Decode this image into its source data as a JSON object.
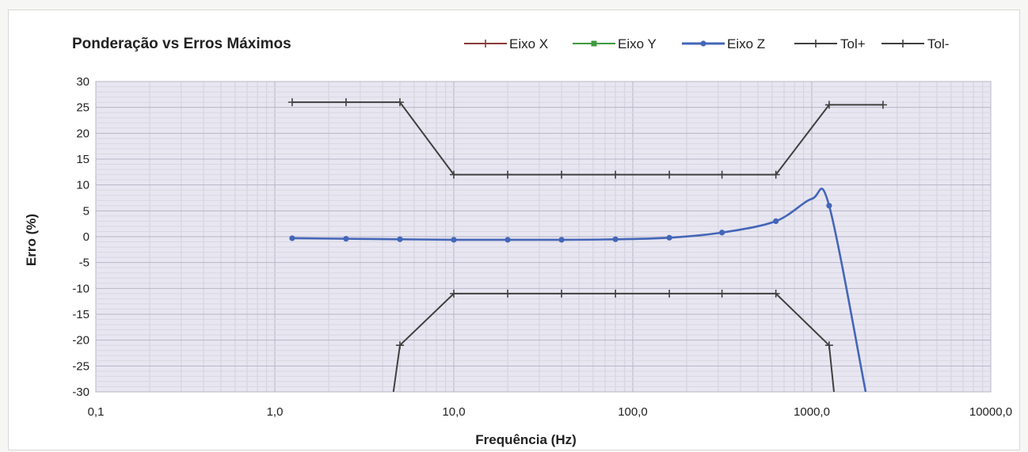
{
  "chart_data": {
    "type": "line",
    "title": "Ponderação vs Erros Máximos",
    "xlabel": "Frequência (Hz)",
    "ylabel": "Erro (%)",
    "x_scale": "log",
    "xlim": [
      0.1,
      10000
    ],
    "ylim": [
      -30,
      30
    ],
    "x_tick_values": [
      0.1,
      1,
      10,
      100,
      1000,
      10000
    ],
    "x_tick_labels": [
      "0,1",
      "1,0",
      "10,0",
      "100,0",
      "1000,0",
      "10000,0"
    ],
    "y_ticks": [
      30,
      25,
      20,
      15,
      10,
      5,
      0,
      -5,
      -10,
      -15,
      -20,
      -25,
      -30
    ],
    "y_tick_labels": [
      "30",
      "25",
      "20",
      "15",
      "10",
      "5",
      "0",
      "-5",
      "-10",
      "-15",
      "-20",
      "-25",
      "-30"
    ],
    "grid": true,
    "legend_position": "top",
    "plot_background": "#e8e6f1",
    "series": [
      {
        "name": "Eixo X",
        "color": "#8b3a3a",
        "marker": "plus",
        "x": [],
        "y": []
      },
      {
        "name": "Eixo Y",
        "color": "#3f9a3f",
        "marker": "square",
        "x": [],
        "y": []
      },
      {
        "name": "Eixo Z",
        "color": "#4466b8",
        "marker": "circle",
        "smooth": true,
        "x": [
          1.25,
          2.5,
          5,
          10,
          20,
          40,
          80,
          160,
          315,
          630,
          1000,
          1250,
          2000
        ],
        "y": [
          -0.3,
          -0.4,
          -0.5,
          -0.6,
          -0.6,
          -0.6,
          -0.5,
          -0.2,
          0.8,
          3.0,
          7.3,
          6.0,
          -30
        ],
        "marker_points": [
          1.25,
          2.5,
          5,
          10,
          20,
          40,
          80,
          160,
          315,
          630,
          1250
        ]
      },
      {
        "name": "Tol+",
        "color": "#404040",
        "marker": "plus",
        "x": [
          1.25,
          2.5,
          5,
          10,
          20,
          40,
          80,
          160,
          315,
          630,
          1250,
          2500
        ],
        "y": [
          26,
          26,
          26,
          12,
          12,
          12,
          12,
          12,
          12,
          12,
          25.5,
          25.5
        ]
      },
      {
        "name": "Tol-",
        "color": "#404040",
        "marker": "plus",
        "x": [
          4.6,
          5,
          10,
          20,
          40,
          80,
          160,
          315,
          630,
          1250,
          1330
        ],
        "y": [
          -30,
          -21,
          -11,
          -11,
          -11,
          -11,
          -11,
          -11,
          -11,
          -21,
          -30
        ],
        "marker_points": [
          5,
          10,
          20,
          40,
          80,
          160,
          315,
          630,
          1250
        ]
      }
    ]
  }
}
